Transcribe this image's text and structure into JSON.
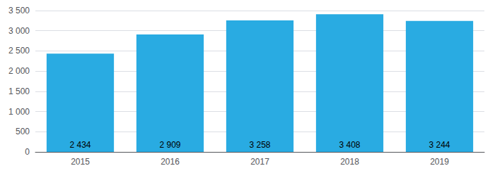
{
  "chart_data": {
    "type": "bar",
    "categories": [
      "2015",
      "2016",
      "2017",
      "2018",
      "2019"
    ],
    "values": [
      2434,
      2909,
      3258,
      3408,
      3244
    ],
    "value_labels": [
      "2 434",
      "2 909",
      "3 258",
      "3 408",
      "3 244"
    ],
    "data_labels": true,
    "color": "#29ABE2",
    "ylim": [
      0,
      3500
    ],
    "yticks": [
      0,
      {
        "value": 500,
        "label": "500"
      },
      {
        "value": 1000,
        "label": "1 000"
      },
      {
        "value": 1500,
        "label": "1 500"
      },
      {
        "value": 2000,
        "label": "2 000"
      },
      {
        "value": 2500,
        "label": "2 500"
      },
      {
        "value": 3000,
        "label": "3 000"
      },
      {
        "value": 3500,
        "label": "3 500"
      }
    ],
    "grid": true
  }
}
